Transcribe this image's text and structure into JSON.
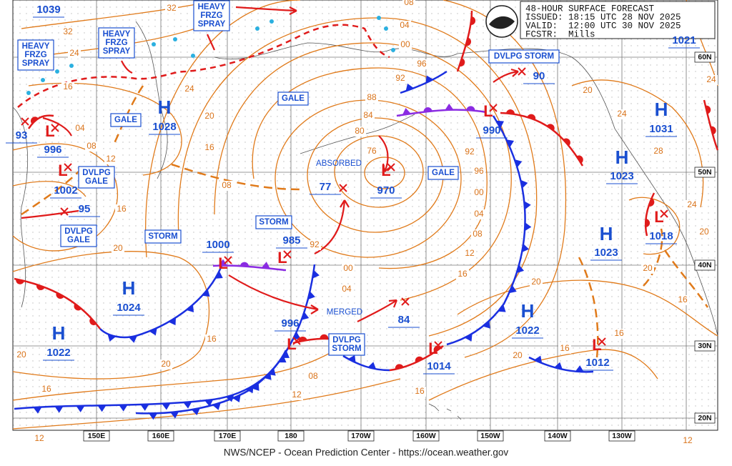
{
  "header": {
    "lines": [
      "48-HOUR SURFACE FORECAST",
      "ISSUED: 18:15 UTC 28 NOV 2025",
      "VALID:  12:00 UTC 30 NOV 2025",
      "FCSTR:  Mills"
    ]
  },
  "highs": [
    {
      "symbol": "H",
      "value": 1028
    },
    {
      "symbol": "H",
      "value": 1024
    },
    {
      "symbol": "H",
      "value": 1022
    },
    {
      "symbol": "H",
      "value": 1031
    },
    {
      "symbol": "H",
      "value": 1023
    },
    {
      "symbol": "H",
      "value": 1023
    },
    {
      "symbol": "H",
      "value": 1022
    },
    {
      "value": 1039
    },
    {
      "value": 1021
    }
  ],
  "lows": [
    {
      "symbol": "L",
      "value": 996
    },
    {
      "symbol": "L",
      "value": 1002
    },
    {
      "symbol": "L",
      "value": 970
    },
    {
      "symbol": "L",
      "value": 990
    },
    {
      "symbol": "L",
      "value": 1000
    },
    {
      "symbol": "L",
      "value": 985
    },
    {
      "symbol": "L",
      "value": 996
    },
    {
      "symbol": "L",
      "value": 1014
    },
    {
      "symbol": "L",
      "value": 1012
    },
    {
      "symbol": "L",
      "value": 1018
    }
  ],
  "minor_lows": [
    93,
    95,
    77,
    84,
    90
  ],
  "warnings": [
    {
      "lines": [
        "HEAVY",
        "FRZG",
        "SPRAY"
      ]
    },
    {
      "lines": [
        "HEAVY",
        "FRZG",
        "SPRAY"
      ]
    },
    {
      "lines": [
        "HEAVY",
        "FRZG",
        "SPRAY"
      ]
    },
    {
      "lines": [
        "GALE"
      ]
    },
    {
      "lines": [
        "GALE"
      ]
    },
    {
      "lines": [
        "DVLPG",
        "GALE"
      ]
    },
    {
      "lines": [
        "DVLPG",
        "GALE"
      ]
    },
    {
      "lines": [
        "STORM"
      ]
    },
    {
      "lines": [
        "STORM"
      ]
    },
    {
      "lines": [
        "GALE"
      ]
    },
    {
      "lines": [
        "DVLPG STORM"
      ]
    },
    {
      "lines": [
        "DVLPG",
        "STORM"
      ]
    }
  ],
  "annotations": [
    "ABSORBED",
    "MERGED"
  ],
  "isobar_labels": [
    "32",
    "32",
    "24",
    "24",
    "16",
    "04",
    "08",
    "12",
    "16",
    "20",
    "20",
    "16",
    "08",
    "92",
    "88",
    "84",
    "80",
    "76",
    "04",
    "00",
    "96",
    "92",
    "96",
    "00",
    "04",
    "08",
    "12",
    "16",
    "20",
    "20",
    "16",
    "16",
    "20",
    "16",
    "20",
    "24",
    "28",
    "24",
    "20",
    "24",
    "92",
    "00",
    "04",
    "08",
    "12",
    "16",
    "20",
    "20",
    "16",
    "16",
    "12",
    "12",
    "08"
  ],
  "latitude_labels": [
    "60N",
    "50N",
    "40N",
    "30N",
    "20N"
  ],
  "longitude_labels": [
    "150E",
    "160E",
    "170E",
    "180",
    "170W",
    "160W",
    "150W",
    "140W",
    "130W"
  ],
  "footer": "NWS/NCEP - Ocean Prediction Center - https://ocean.weather.gov"
}
